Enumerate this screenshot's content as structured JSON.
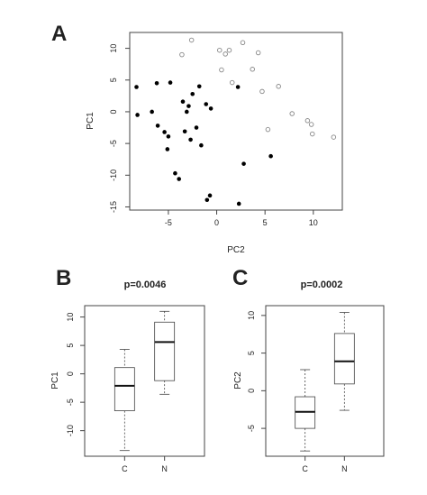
{
  "chart_data": [
    {
      "panel": "A",
      "type": "scatter",
      "title": "",
      "xlabel": "PC2",
      "ylabel": "PC1",
      "xlim": [
        -9,
        13
      ],
      "ylim": [
        -15.5,
        12.5
      ],
      "xticks": [
        -5,
        0,
        5,
        10
      ],
      "yticks": [
        -15,
        -10,
        -5,
        0,
        5,
        10
      ],
      "series": [
        {
          "marker": "filled",
          "color": "#000000",
          "points": [
            [
              -8.3,
              3.9
            ],
            [
              -8.2,
              -0.5
            ],
            [
              -6.7,
              0.0
            ],
            [
              -6.2,
              4.5
            ],
            [
              -6.1,
              -2.2
            ],
            [
              -5.4,
              -3.2
            ],
            [
              -5.0,
              -3.9
            ],
            [
              -5.1,
              -5.9
            ],
            [
              -4.8,
              4.6
            ],
            [
              -4.3,
              -9.7
            ],
            [
              -3.9,
              -10.6
            ],
            [
              -3.5,
              1.6
            ],
            [
              -3.3,
              -3.1
            ],
            [
              -3.1,
              0.0
            ],
            [
              -2.9,
              0.9
            ],
            [
              -2.7,
              -4.4
            ],
            [
              -2.5,
              2.8
            ],
            [
              -2.1,
              -2.5
            ],
            [
              -1.8,
              4.0
            ],
            [
              -1.6,
              -5.3
            ],
            [
              -1.1,
              1.2
            ],
            [
              -1.0,
              -13.9
            ],
            [
              -0.7,
              -13.2
            ],
            [
              -0.6,
              0.5
            ],
            [
              2.2,
              3.9
            ],
            [
              2.3,
              -14.5
            ],
            [
              2.8,
              -8.2
            ],
            [
              5.6,
              -7.0
            ]
          ]
        },
        {
          "marker": "open",
          "color": "#888888",
          "points": [
            [
              -3.6,
              9.0
            ],
            [
              -2.6,
              11.3
            ],
            [
              0.3,
              9.7
            ],
            [
              0.5,
              6.6
            ],
            [
              0.9,
              9.1
            ],
            [
              1.3,
              9.7
            ],
            [
              1.6,
              4.6
            ],
            [
              2.7,
              10.9
            ],
            [
              3.7,
              6.7
            ],
            [
              4.3,
              9.3
            ],
            [
              4.7,
              3.2
            ],
            [
              5.3,
              -2.8
            ],
            [
              6.4,
              4.0
            ],
            [
              7.8,
              -0.3
            ],
            [
              9.4,
              -1.4
            ],
            [
              9.8,
              -2.0
            ],
            [
              9.9,
              -3.5
            ],
            [
              12.1,
              -4.0
            ]
          ]
        }
      ]
    },
    {
      "panel": "B",
      "type": "box",
      "title": "p=0.0046",
      "xlabel": "",
      "ylabel": "PC1",
      "categories": [
        "C",
        "N"
      ],
      "ylim": [
        -14.5,
        12
      ],
      "yticks": [
        -10,
        -5,
        0,
        5,
        10
      ],
      "boxes": [
        {
          "min": -13.5,
          "q1": -6.5,
          "median": -2.1,
          "q3": 1.1,
          "max": 4.3
        },
        {
          "min": -3.6,
          "q1": -1.2,
          "median": 5.6,
          "q3": 9.1,
          "max": 11.0
        }
      ]
    },
    {
      "panel": "C",
      "type": "box",
      "title": "p=0.0002",
      "xlabel": "",
      "ylabel": "PC2",
      "categories": [
        "C",
        "N"
      ],
      "ylim": [
        -8.7,
        11.3
      ],
      "yticks": [
        -5,
        0,
        5,
        10
      ],
      "boxes": [
        {
          "min": -8.0,
          "q1": -5.0,
          "median": -2.8,
          "q3": -0.8,
          "max": 2.8
        },
        {
          "min": -2.6,
          "q1": 0.9,
          "median": 3.9,
          "q3": 7.6,
          "max": 10.4
        }
      ]
    }
  ]
}
